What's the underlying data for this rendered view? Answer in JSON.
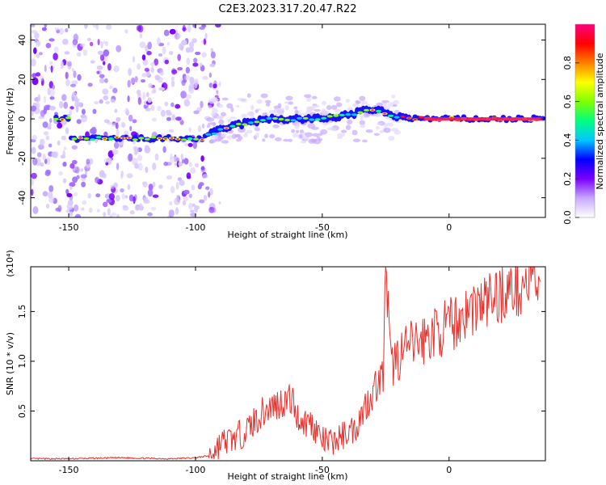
{
  "title": "C2E3.2023.317.20.47.R22",
  "chart_data": [
    {
      "type": "heatmap",
      "xlabel": "Height of straight line (km)",
      "ylabel": "Frequency (Hz)",
      "xlim": [
        -165,
        38
      ],
      "ylim": [
        -50,
        48
      ],
      "x_ticks": [
        -150,
        -100,
        -50,
        0
      ],
      "y_ticks": [
        -40,
        -20,
        0,
        20,
        40
      ],
      "colorbar": {
        "label": "Normalized spectral amplitude",
        "range": [
          0,
          1
        ],
        "ticks": [
          0.0,
          0.2,
          0.4,
          0.6,
          0.8
        ],
        "colors": [
          "#ffffff",
          "#c8a8ff",
          "#7a00ff",
          "#0000ff",
          "#00c8ff",
          "#00ff80",
          "#80ff00",
          "#ffff00",
          "#ff8000",
          "#ff0000",
          "#ff0080"
        ]
      },
      "ridge": [
        {
          "x": -150,
          "y": -10
        },
        {
          "x": -130,
          "y": -10
        },
        {
          "x": -110,
          "y": -10
        },
        {
          "x": -97,
          "y": -10
        },
        {
          "x": -90,
          "y": -5
        },
        {
          "x": -80,
          "y": -2
        },
        {
          "x": -70,
          "y": 0
        },
        {
          "x": -60,
          "y": 0
        },
        {
          "x": -50,
          "y": 0
        },
        {
          "x": -40,
          "y": 2
        },
        {
          "x": -30,
          "y": 5
        },
        {
          "x": -20,
          "y": 1
        },
        {
          "x": -10,
          "y": 0
        },
        {
          "x": 0,
          "y": 0
        },
        {
          "x": 10,
          "y": 0
        },
        {
          "x": 20,
          "y": 0
        },
        {
          "x": 36,
          "y": 0
        }
      ]
    },
    {
      "type": "line",
      "xlabel": "Height of straight line (km)",
      "ylabel": "SNR (10 * v/v)",
      "y_multiplier": "(x10⁴)",
      "xlim": [
        -165,
        38
      ],
      "ylim": [
        0,
        1.95
      ],
      "x_ticks": [
        -150,
        -100,
        -50,
        0
      ],
      "y_ticks": [
        0.5,
        1.0,
        1.5
      ],
      "color": "#e8302c",
      "series": [
        {
          "x": [
            -165,
            -150,
            -130,
            -110,
            -100,
            -95,
            -92,
            -90,
            -85,
            -80,
            -75,
            -70,
            -65,
            -62,
            -60,
            -57,
            -55,
            -52,
            -50,
            -47,
            -45,
            -42,
            -40,
            -37,
            -35,
            -33,
            -30,
            -28,
            -26,
            -25,
            -23,
            -20,
            -15,
            -10,
            -5,
            0,
            5,
            10,
            15,
            20,
            25,
            30,
            36
          ],
          "y": [
            0.02,
            0.02,
            0.03,
            0.02,
            0.03,
            0.05,
            0.12,
            0.18,
            0.22,
            0.3,
            0.45,
            0.55,
            0.6,
            0.62,
            0.45,
            0.38,
            0.4,
            0.3,
            0.2,
            0.18,
            0.2,
            0.25,
            0.3,
            0.32,
            0.45,
            0.55,
            0.7,
            0.8,
            0.85,
            1.95,
            0.95,
            1.05,
            1.15,
            1.22,
            1.3,
            1.35,
            1.45,
            1.55,
            1.6,
            1.68,
            1.72,
            1.78,
            1.8
          ]
        }
      ]
    }
  ]
}
